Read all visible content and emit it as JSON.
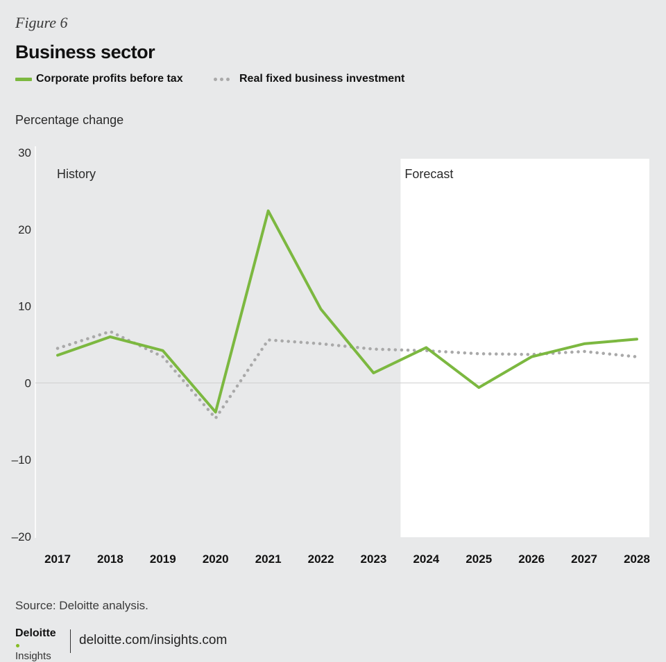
{
  "figure_label": "Figure 6",
  "title": "Business sector",
  "legend": [
    {
      "label": "Corporate profits before tax",
      "color": "#7cb840",
      "style": "solid"
    },
    {
      "label": "Real fixed business investment",
      "color": "#a9a9a9",
      "style": "dotted"
    }
  ],
  "y_axis_title": "Percentage change",
  "source": "Source: Deloitte analysis.",
  "footer": {
    "logo_word": "Deloitte",
    "logo_sub": "Insights",
    "link": "deloitte.com/insights.com"
  },
  "chart_data": {
    "type": "line",
    "title": "Business sector",
    "ylabel": "Percentage change",
    "xlabel": "",
    "categories": [
      "2017",
      "2018",
      "2019",
      "2020",
      "2021",
      "2022",
      "2023",
      "2024",
      "2025",
      "2026",
      "2027",
      "2028"
    ],
    "ylim": [
      -20,
      30
    ],
    "yticks": [
      30,
      20,
      10,
      0,
      -10,
      -20
    ],
    "ytick_labels": [
      "30",
      "20",
      "10",
      "0",
      "–10",
      "–20"
    ],
    "series": [
      {
        "name": "Corporate profits before tax",
        "color": "#7cb840",
        "style": "solid",
        "values": [
          3.6,
          6.0,
          4.2,
          -3.8,
          22.4,
          9.6,
          1.3,
          4.6,
          -0.6,
          3.4,
          5.1,
          5.7
        ]
      },
      {
        "name": "Real fixed business investment",
        "color": "#a9a9a9",
        "style": "dotted",
        "values": [
          4.5,
          6.7,
          3.4,
          -4.6,
          5.6,
          5.1,
          4.4,
          4.2,
          3.8,
          3.7,
          4.1,
          3.4
        ]
      }
    ],
    "annotations": [
      {
        "text": "History",
        "region": "history"
      },
      {
        "text": "Forecast",
        "region": "forecast",
        "start_category": "2024"
      }
    ],
    "zero_line": true,
    "legend_position": "top-left"
  }
}
